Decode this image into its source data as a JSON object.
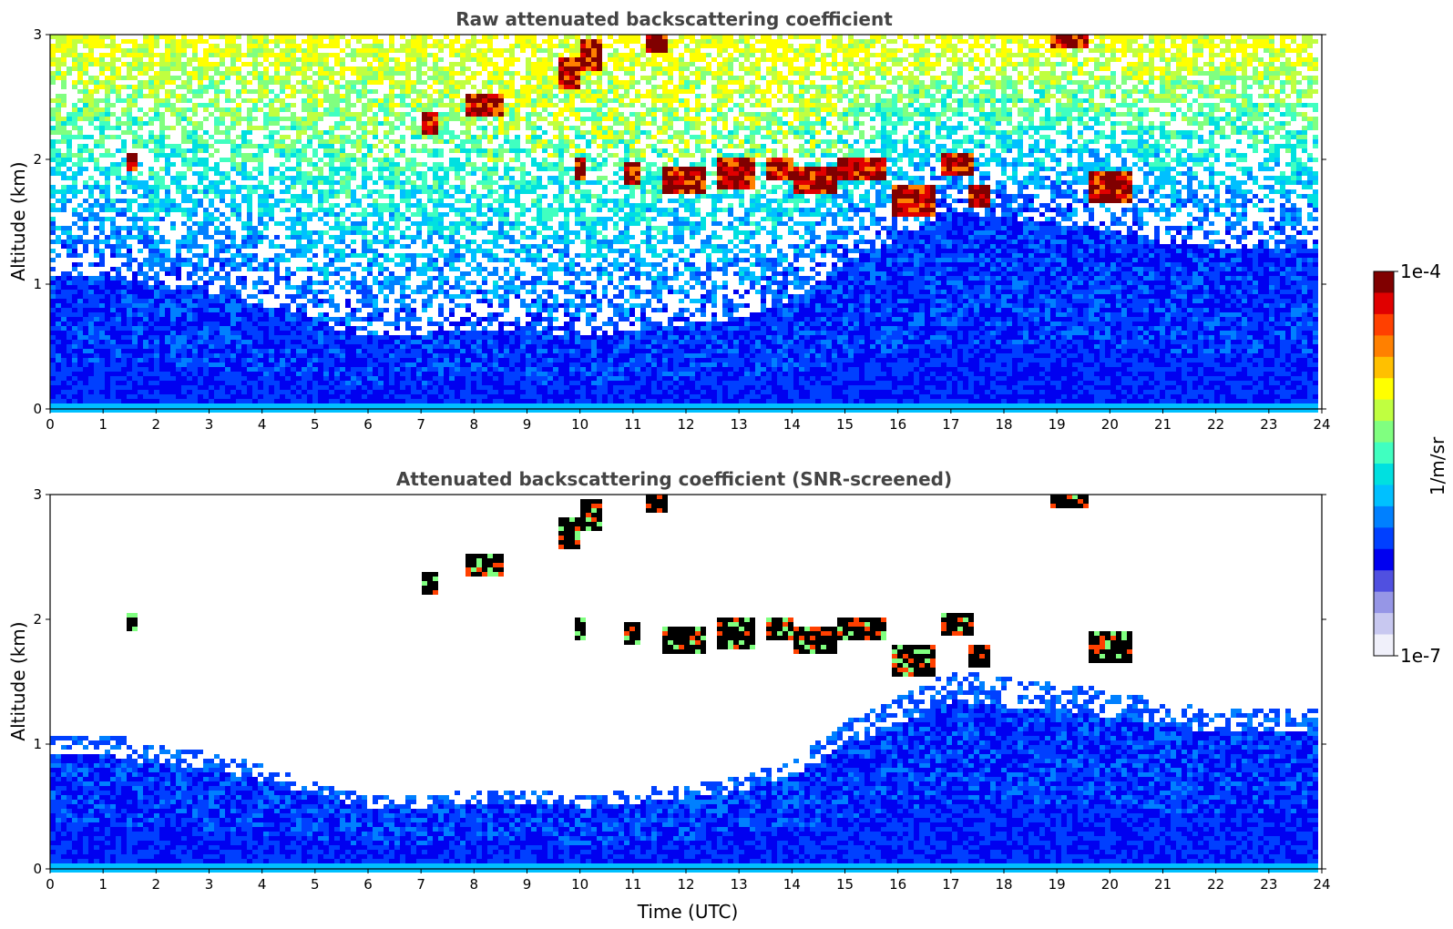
{
  "chart_data": [
    {
      "type": "heatmap",
      "title": "Raw attenuated backscattering coefficient",
      "xlabel": "",
      "ylabel": "Altitude (km)",
      "xlim": [
        0,
        24
      ],
      "ylim": [
        0,
        3
      ],
      "xticks": [
        "0",
        "1",
        "2",
        "3",
        "4",
        "5",
        "6",
        "7",
        "8",
        "9",
        "10",
        "11",
        "12",
        "13",
        "14",
        "15",
        "16",
        "17",
        "18",
        "19",
        "20",
        "21",
        "22",
        "23",
        "24"
      ],
      "yticks": [
        "0",
        "1",
        "2",
        "3"
      ],
      "grid": false,
      "data_extent_x": [
        0,
        23.85
      ],
      "features": {
        "boundary_layer_top_km": [
          [
            0,
            1.1
          ],
          [
            1,
            1.1
          ],
          [
            2,
            1.0
          ],
          [
            3,
            0.95
          ],
          [
            4,
            0.85
          ],
          [
            5,
            0.7
          ],
          [
            6,
            0.6
          ],
          [
            7,
            0.6
          ],
          [
            8,
            0.65
          ],
          [
            9,
            0.65
          ],
          [
            10,
            0.6
          ],
          [
            11,
            0.65
          ],
          [
            12,
            0.7
          ],
          [
            13,
            0.75
          ],
          [
            14,
            0.9
          ],
          [
            15,
            1.2
          ],
          [
            16,
            1.4
          ],
          [
            17,
            1.6
          ],
          [
            18,
            1.55
          ],
          [
            19,
            1.5
          ],
          [
            20,
            1.45
          ],
          [
            21,
            1.35
          ],
          [
            22,
            1.3
          ],
          [
            23,
            1.3
          ],
          [
            23.85,
            1.3
          ]
        ],
        "cloud_layers": [
          {
            "t0": 1.35,
            "t1": 1.6,
            "z": 2.0,
            "dz": 0.06
          },
          {
            "t0": 7.0,
            "t1": 7.3,
            "z": 2.3,
            "dz": 0.1
          },
          {
            "t0": 7.8,
            "t1": 8.5,
            "z": 2.45,
            "dz": 0.1
          },
          {
            "t0": 9.5,
            "t1": 10.0,
            "z": 2.7,
            "dz": 0.12
          },
          {
            "t0": 10.0,
            "t1": 10.4,
            "z": 2.85,
            "dz": 0.12
          },
          {
            "t0": 9.9,
            "t1": 10.1,
            "z": 1.95,
            "dz": 0.1
          },
          {
            "t0": 11.2,
            "t1": 11.6,
            "z": 2.95,
            "dz": 0.08
          },
          {
            "t0": 10.8,
            "t1": 11.1,
            "z": 1.9,
            "dz": 0.1
          },
          {
            "t0": 11.5,
            "t1": 12.3,
            "z": 1.85,
            "dz": 0.1
          },
          {
            "t0": 12.5,
            "t1": 13.3,
            "z": 1.9,
            "dz": 0.12
          },
          {
            "t0": 13.5,
            "t1": 14.0,
            "z": 1.95,
            "dz": 0.1
          },
          {
            "t0": 14.0,
            "t1": 14.8,
            "z": 1.85,
            "dz": 0.12
          },
          {
            "t0": 14.8,
            "t1": 15.7,
            "z": 1.95,
            "dz": 0.1
          },
          {
            "t0": 15.8,
            "t1": 16.7,
            "z": 1.68,
            "dz": 0.12
          },
          {
            "t0": 16.8,
            "t1": 17.4,
            "z": 1.98,
            "dz": 0.1
          },
          {
            "t0": 17.3,
            "t1": 17.7,
            "z": 1.72,
            "dz": 0.08
          },
          {
            "t0": 18.8,
            "t1": 19.5,
            "z": 2.97,
            "dz": 0.05
          },
          {
            "t0": 19.5,
            "t1": 20.4,
            "z": 1.8,
            "dz": 0.12
          }
        ]
      }
    },
    {
      "type": "heatmap",
      "title": "Attenuated backscattering coefficient (SNR-screened)",
      "xlabel": "Time (UTC)",
      "ylabel": "Altitude (km)",
      "xlim": [
        0,
        24
      ],
      "ylim": [
        0,
        3
      ],
      "xticks": [
        "0",
        "1",
        "2",
        "3",
        "4",
        "5",
        "6",
        "7",
        "8",
        "9",
        "10",
        "11",
        "12",
        "13",
        "14",
        "15",
        "16",
        "17",
        "18",
        "19",
        "20",
        "21",
        "22",
        "23",
        "24"
      ],
      "yticks": [
        "0",
        "1",
        "2",
        "3"
      ],
      "grid": false,
      "data_extent_x": [
        0,
        23.85
      ]
    }
  ],
  "colorbar": {
    "label": "1/m/sr",
    "max_label": "1e-4",
    "min_label": "1e-7",
    "scale": "log",
    "range": [
      1e-07,
      0.0001
    ],
    "colormap": "jet",
    "colors": [
      "#f0f0fa",
      "#c8c8f0",
      "#9696e6",
      "#5050e0",
      "#0000f0",
      "#0040ff",
      "#0080ff",
      "#00c0ff",
      "#00e0e0",
      "#40ffc0",
      "#80ff80",
      "#c0ff40",
      "#ffff00",
      "#ffc000",
      "#ff8000",
      "#ff4000",
      "#e00000",
      "#800000"
    ]
  },
  "style": {
    "title_color": "#444444",
    "saturated_color": "#000000"
  }
}
